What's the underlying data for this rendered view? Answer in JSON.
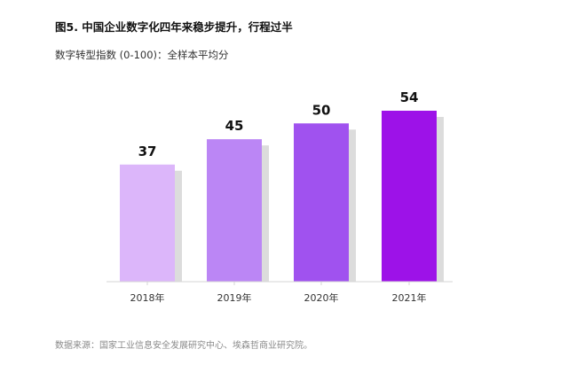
{
  "title": "图5. 中国企业数字化四年来稳步提升，行程过半",
  "subtitle": "数字转型指数 (0-100)：全样本平均分",
  "source": "数据来源：国家工业信息安全发展研究中心、埃森哲商业研究院。",
  "colors": {
    "bars": [
      "#dcb6fa",
      "#bb86f5",
      "#a052ef",
      "#9d12e8"
    ],
    "shadow": "#dcdcdc",
    "axis": "#d6d6d6"
  },
  "chart_data": {
    "type": "bar",
    "title": "图5. 中国企业数字化四年来稳步提升，行程过半",
    "subtitle": "数字转型指数 (0-100)：全样本平均分",
    "categories": [
      "2018年",
      "2019年",
      "2020年",
      "2021年"
    ],
    "values": [
      37,
      45,
      50,
      54
    ],
    "value_labels": [
      "37",
      "45",
      "50",
      "54"
    ],
    "xlabel": "",
    "ylabel": "",
    "grid": false,
    "legend": "none"
  }
}
